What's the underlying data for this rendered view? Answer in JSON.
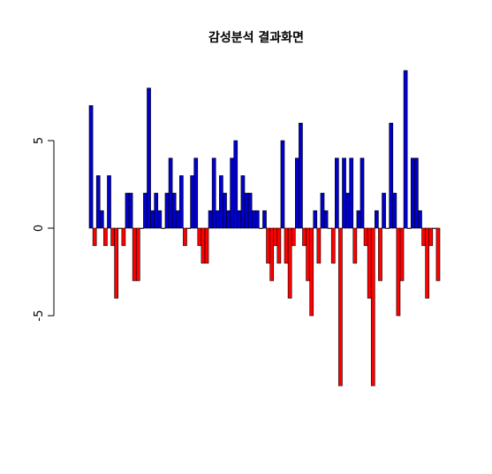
{
  "chart_data": {
    "type": "bar",
    "title": "감성분석 결과화면",
    "xlabel": "",
    "ylabel": "",
    "ylim": [
      -10,
      10
    ],
    "yticks": [
      {
        "value": -5,
        "label": "-5"
      },
      {
        "value": 0,
        "label": "0"
      },
      {
        "value": 5,
        "label": "5"
      }
    ],
    "grid": false,
    "values": [
      7,
      -1,
      3,
      1,
      -1,
      3,
      -1,
      -4,
      0,
      -1,
      2,
      2,
      -3,
      -3,
      0,
      2,
      8,
      1,
      2,
      1,
      0,
      2,
      4,
      2,
      1,
      3,
      -1,
      0,
      3,
      4,
      -1,
      -2,
      -2,
      1,
      4,
      1,
      3,
      2,
      1,
      4,
      5,
      1,
      3,
      2,
      2,
      1,
      1,
      0,
      1,
      -2,
      -3,
      -1,
      -2,
      5,
      -2,
      -4,
      -1,
      4,
      6,
      -1,
      -3,
      -5,
      1,
      -2,
      2,
      1,
      0,
      -2,
      4,
      -9,
      4,
      2,
      4,
      -2,
      1,
      4,
      -1,
      -4,
      -9,
      1,
      -3,
      2,
      0,
      6,
      2,
      -5,
      -3,
      9,
      0,
      4,
      4,
      1,
      -1,
      -4,
      -1,
      0,
      -3
    ],
    "colors": {
      "positive": "#0000cd",
      "negative": "#ff0000",
      "outline": "#000000"
    }
  }
}
